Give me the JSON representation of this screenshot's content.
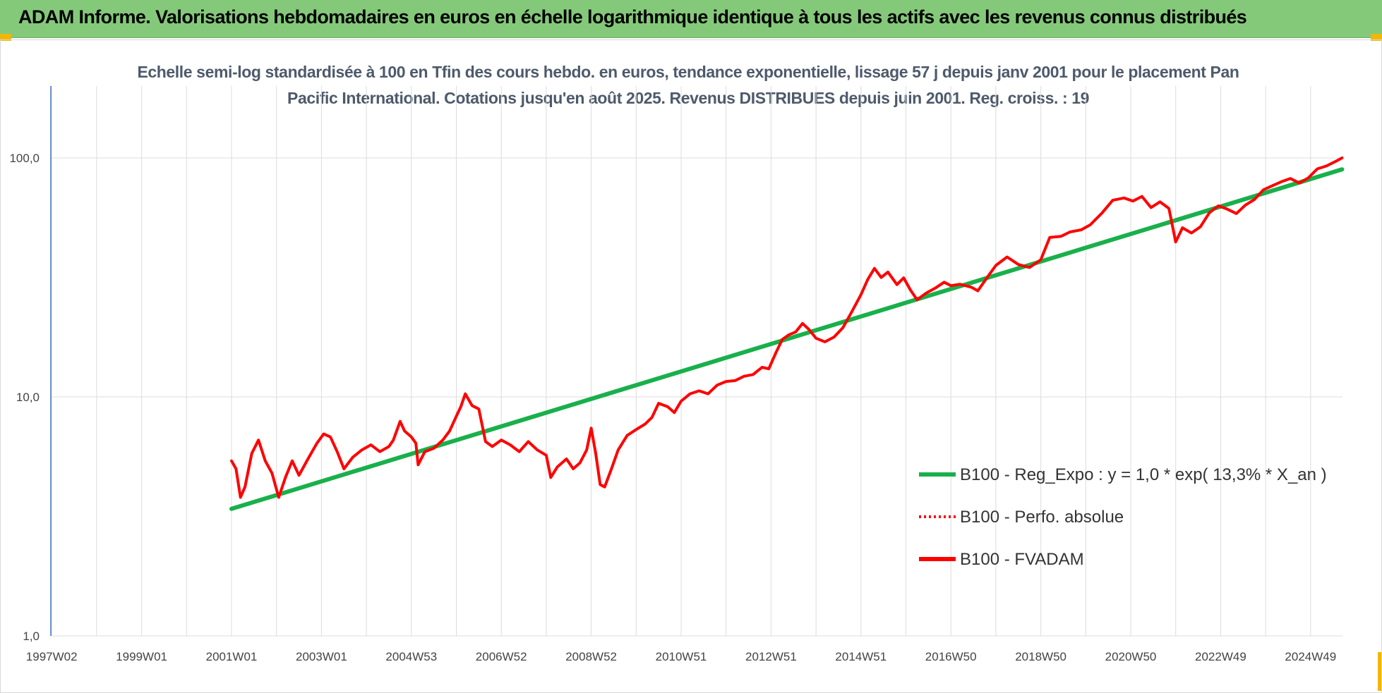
{
  "banner": {
    "title": "ADAM Informe. Valorisations hebdomadaires en euros en échelle logarithmique identique à tous les actifs avec les revenus connus distribués"
  },
  "chart_data": {
    "type": "line",
    "title": "Echelle semi-log standardisée à 100 en Tfin des cours hebdo. en euros, tendance exponentielle, lissage 57 j depuis janv 2001 pour le placement Pan Pacific International. Cotations jusqu'en août 2025. Revenus DISTRIBUES depuis juin 2001. Reg. croiss. : 19",
    "yscale": "log",
    "ylim": [
      1,
      100
    ],
    "xlim": [
      1997.0,
      2025.7
    ],
    "x_ticks": [
      {
        "label": "1997W02",
        "value": 1997.0
      },
      {
        "label": "1999W01",
        "value": 1999.0
      },
      {
        "label": "2001W01",
        "value": 2001.0
      },
      {
        "label": "2003W01",
        "value": 2003.0
      },
      {
        "label": "2004W53",
        "value": 2005.0
      },
      {
        "label": "2006W52",
        "value": 2007.0
      },
      {
        "label": "2008W52",
        "value": 2009.0
      },
      {
        "label": "2010W51",
        "value": 2011.0
      },
      {
        "label": "2012W51",
        "value": 2013.0
      },
      {
        "label": "2014W51",
        "value": 2015.0
      },
      {
        "label": "2016W50",
        "value": 2017.0
      },
      {
        "label": "2018W50",
        "value": 2019.0
      },
      {
        "label": "2020W50",
        "value": 2021.0
      },
      {
        "label": "2022W49",
        "value": 2023.0
      },
      {
        "label": "2024W49",
        "value": 2025.0
      }
    ],
    "y_ticks": [
      {
        "label": "1,0",
        "value": 1
      },
      {
        "label": "10,0",
        "value": 10
      },
      {
        "label": "100,0",
        "value": 100
      }
    ],
    "grid": true,
    "legend_position": "right",
    "series": [
      {
        "name": "B100 - Reg_Expo : y = 1,0 * exp( 13,3% *  X_an )",
        "color": "#19b04b",
        "style": "solid",
        "points": [
          [
            2001.0,
            3.4
          ],
          [
            2025.7,
            89.5
          ]
        ]
      },
      {
        "name": "B100 - Perfo. absolue",
        "color": "#ff0000",
        "style": "dotted",
        "points": []
      },
      {
        "name": "B100 - FVADAM",
        "color": "#ff0000",
        "style": "solid",
        "points": [
          [
            2001.0,
            5.4
          ],
          [
            2001.1,
            5.0
          ],
          [
            2001.2,
            3.8
          ],
          [
            2001.3,
            4.2
          ],
          [
            2001.45,
            5.8
          ],
          [
            2001.6,
            6.6
          ],
          [
            2001.75,
            5.4
          ],
          [
            2001.9,
            4.8
          ],
          [
            2002.05,
            3.8
          ],
          [
            2002.2,
            4.6
          ],
          [
            2002.35,
            5.4
          ],
          [
            2002.5,
            4.7
          ],
          [
            2002.7,
            5.5
          ],
          [
            2002.9,
            6.4
          ],
          [
            2003.05,
            7.0
          ],
          [
            2003.2,
            6.8
          ],
          [
            2003.35,
            5.9
          ],
          [
            2003.5,
            5.0
          ],
          [
            2003.7,
            5.6
          ],
          [
            2003.9,
            6.0
          ],
          [
            2004.1,
            6.3
          ],
          [
            2004.3,
            5.9
          ],
          [
            2004.5,
            6.2
          ],
          [
            2004.6,
            6.6
          ],
          [
            2004.75,
            7.9
          ],
          [
            2004.85,
            7.2
          ],
          [
            2005.0,
            6.8
          ],
          [
            2005.1,
            6.4
          ],
          [
            2005.15,
            5.2
          ],
          [
            2005.3,
            5.9
          ],
          [
            2005.5,
            6.1
          ],
          [
            2005.7,
            6.6
          ],
          [
            2005.85,
            7.2
          ],
          [
            2006.0,
            8.3
          ],
          [
            2006.1,
            9.1
          ],
          [
            2006.2,
            10.3
          ],
          [
            2006.35,
            9.2
          ],
          [
            2006.5,
            8.9
          ],
          [
            2006.65,
            6.5
          ],
          [
            2006.8,
            6.2
          ],
          [
            2007.0,
            6.6
          ],
          [
            2007.2,
            6.3
          ],
          [
            2007.4,
            5.9
          ],
          [
            2007.6,
            6.5
          ],
          [
            2007.8,
            6.0
          ],
          [
            2008.0,
            5.7
          ],
          [
            2008.1,
            4.6
          ],
          [
            2008.25,
            5.1
          ],
          [
            2008.45,
            5.5
          ],
          [
            2008.6,
            5.0
          ],
          [
            2008.75,
            5.3
          ],
          [
            2008.9,
            6.0
          ],
          [
            2009.0,
            7.4
          ],
          [
            2009.1,
            5.8
          ],
          [
            2009.2,
            4.3
          ],
          [
            2009.3,
            4.2
          ],
          [
            2009.45,
            5.0
          ],
          [
            2009.6,
            6.0
          ],
          [
            2009.8,
            6.9
          ],
          [
            2010.0,
            7.3
          ],
          [
            2010.2,
            7.7
          ],
          [
            2010.35,
            8.2
          ],
          [
            2010.5,
            9.4
          ],
          [
            2010.7,
            9.1
          ],
          [
            2010.85,
            8.6
          ],
          [
            2011.0,
            9.6
          ],
          [
            2011.2,
            10.3
          ],
          [
            2011.4,
            10.6
          ],
          [
            2011.6,
            10.3
          ],
          [
            2011.8,
            11.2
          ],
          [
            2012.0,
            11.6
          ],
          [
            2012.2,
            11.7
          ],
          [
            2012.4,
            12.2
          ],
          [
            2012.6,
            12.4
          ],
          [
            2012.8,
            13.3
          ],
          [
            2012.95,
            13.1
          ],
          [
            2013.1,
            15.2
          ],
          [
            2013.25,
            17.4
          ],
          [
            2013.4,
            18.2
          ],
          [
            2013.55,
            18.7
          ],
          [
            2013.7,
            20.3
          ],
          [
            2013.85,
            19.1
          ],
          [
            2014.0,
            17.6
          ],
          [
            2014.2,
            17.0
          ],
          [
            2014.4,
            17.8
          ],
          [
            2014.6,
            19.5
          ],
          [
            2014.8,
            22.8
          ],
          [
            2015.0,
            26.8
          ],
          [
            2015.15,
            31.0
          ],
          [
            2015.3,
            34.5
          ],
          [
            2015.45,
            31.6
          ],
          [
            2015.6,
            33.3
          ],
          [
            2015.8,
            29.5
          ],
          [
            2015.95,
            31.5
          ],
          [
            2016.1,
            28.0
          ],
          [
            2016.25,
            25.5
          ],
          [
            2016.45,
            27.2
          ],
          [
            2016.65,
            28.5
          ],
          [
            2016.85,
            30.2
          ],
          [
            2017.0,
            29.2
          ],
          [
            2017.2,
            29.6
          ],
          [
            2017.45,
            28.8
          ],
          [
            2017.6,
            27.8
          ],
          [
            2017.8,
            31.5
          ],
          [
            2018.0,
            35.5
          ],
          [
            2018.25,
            38.5
          ],
          [
            2018.5,
            35.8
          ],
          [
            2018.75,
            34.8
          ],
          [
            2019.0,
            37.5
          ],
          [
            2019.2,
            46.5
          ],
          [
            2019.45,
            47.0
          ],
          [
            2019.65,
            49.0
          ],
          [
            2019.9,
            50.0
          ],
          [
            2020.1,
            52.5
          ],
          [
            2020.35,
            58.5
          ],
          [
            2020.6,
            66.5
          ],
          [
            2020.85,
            68.0
          ],
          [
            2021.05,
            66.0
          ],
          [
            2021.25,
            69.0
          ],
          [
            2021.45,
            62.0
          ],
          [
            2021.65,
            65.5
          ],
          [
            2021.85,
            61.5
          ],
          [
            2022.0,
            44.5
          ],
          [
            2022.15,
            51.0
          ],
          [
            2022.35,
            48.5
          ],
          [
            2022.55,
            51.5
          ],
          [
            2022.75,
            59.0
          ],
          [
            2022.95,
            63.0
          ],
          [
            2023.15,
            61.0
          ],
          [
            2023.35,
            58.5
          ],
          [
            2023.55,
            63.5
          ],
          [
            2023.75,
            67.0
          ],
          [
            2023.95,
            73.5
          ],
          [
            2024.15,
            76.5
          ],
          [
            2024.35,
            79.5
          ],
          [
            2024.55,
            82.0
          ],
          [
            2024.75,
            78.5
          ],
          [
            2024.95,
            82.5
          ],
          [
            2025.15,
            90.0
          ],
          [
            2025.35,
            92.5
          ],
          [
            2025.55,
            96.5
          ],
          [
            2025.7,
            100.0
          ]
        ]
      }
    ]
  }
}
